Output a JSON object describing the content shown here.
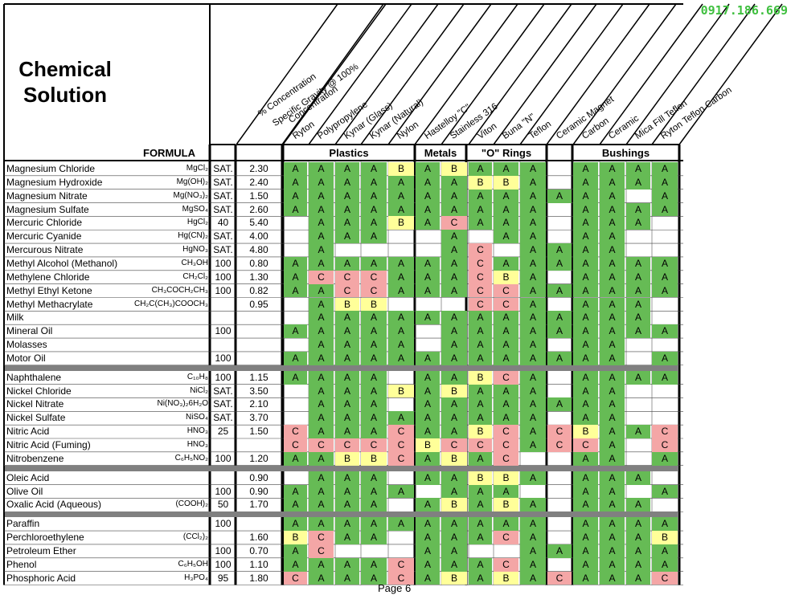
{
  "title_lines": [
    "Chemical",
    "Solution"
  ],
  "watermark": "0917.186.669",
  "page_label": "Page 6",
  "headers": {
    "formula": "FORMULA",
    "concentration": "% Concentration",
    "sg_line1": "Specific Gravity @ 100%",
    "sg_line2": "Concentration",
    "groups": [
      "Plastics",
      "Metals",
      "\"O\" Rings",
      "Bushings"
    ],
    "materials": [
      "Ryton",
      "Polypropylene",
      "Kynar (Glass)",
      "Kynar (Natural)",
      "Nylon",
      "Hastelloy \"C\"",
      "Stainless 316",
      "Viton",
      "Buna \"N\"",
      "Teflon",
      "Ceramic Magnet",
      "Carbon",
      "Ceramic",
      "Mica Fill Teflon",
      "Ryton Teflon Carbon"
    ]
  },
  "colors": {
    "A": "#66bb55",
    "B": "#ffff99",
    "C": "#f4a6a6",
    "separator": "#808080"
  },
  "rows": [
    {
      "name": "Magnesium Chloride",
      "formula": "MgCl₂",
      "conc": "SAT.",
      "sg": "2.30",
      "r": [
        "A",
        "A",
        "A",
        "A",
        "B",
        "A",
        "B",
        "A",
        "A",
        "A",
        "",
        "A",
        "A",
        "A",
        "A"
      ]
    },
    {
      "name": "Magnesium Hydroxide",
      "formula": "Mg(OH)₂",
      "conc": "SAT.",
      "sg": "2.40",
      "r": [
        "A",
        "A",
        "A",
        "A",
        "A",
        "A",
        "A",
        "B",
        "B",
        "A",
        "",
        "A",
        "A",
        "A",
        "A"
      ]
    },
    {
      "name": "Magnesium Nitrate",
      "formula": "Mg(NO₃)₂",
      "conc": "SAT.",
      "sg": "1.50",
      "r": [
        "A",
        "A",
        "A",
        "A",
        "A",
        "A",
        "A",
        "A",
        "A",
        "A",
        "A",
        "A",
        "A",
        "",
        "A"
      ]
    },
    {
      "name": "Magnesium Sulfate",
      "formula": "MgSO₄",
      "conc": "SAT.",
      "sg": "2.60",
      "r": [
        "A",
        "A",
        "A",
        "A",
        "A",
        "A",
        "A",
        "A",
        "A",
        "A",
        "",
        "A",
        "A",
        "A",
        "A"
      ]
    },
    {
      "name": "Mercuric Chloride",
      "formula": "HgCl₂",
      "conc": "40",
      "sg": "5.40",
      "r": [
        "",
        "A",
        "A",
        "A",
        "B",
        "A",
        "C",
        "A",
        "A",
        "A",
        "",
        "A",
        "A",
        "A",
        ""
      ]
    },
    {
      "name": "Mercuric Cyanide",
      "formula": "Hg(CN)₂",
      "conc": "SAT.",
      "sg": "4.00",
      "r": [
        "",
        "A",
        "A",
        "A",
        "",
        "",
        "A",
        "",
        "A",
        "A",
        "",
        "A",
        "A",
        "",
        ""
      ]
    },
    {
      "name": "Mercurous Nitrate",
      "formula": "HgNO₃",
      "conc": "SAT.",
      "sg": "4.80",
      "r": [
        "",
        "A",
        "",
        "",
        "",
        "",
        "A",
        "C",
        "",
        "A",
        "A",
        "A",
        "A",
        "",
        ""
      ]
    },
    {
      "name": "Methyl Alcohol (Methanol)",
      "formula": "CH₃OH",
      "conc": "100",
      "sg": "0.80",
      "r": [
        "A",
        "A",
        "A",
        "A",
        "A",
        "A",
        "A",
        "C",
        "A",
        "A",
        "A",
        "A",
        "A",
        "A",
        "A"
      ]
    },
    {
      "name": "Methylene Chloride",
      "formula": "CH₂Cl₂",
      "conc": "100",
      "sg": "1.30",
      "r": [
        "A",
        "C",
        "C",
        "C",
        "A",
        "A",
        "A",
        "C",
        "B",
        "A",
        "",
        "A",
        "A",
        "A",
        "A"
      ]
    },
    {
      "name": "Methyl Ethyl Ketone",
      "formula": "CH₃COCH₂CH₃",
      "conc": "100",
      "sg": "0.82",
      "r": [
        "A",
        "A",
        "C",
        "C",
        "A",
        "A",
        "A",
        "C",
        "C",
        "A",
        "A",
        "A",
        "A",
        "A",
        "A"
      ]
    },
    {
      "name": "Methyl Methacrylate",
      "formula": "CH₂C(CH₃)COOCH₃",
      "conc": "",
      "sg": "0.95",
      "r": [
        "",
        "A",
        "B",
        "B",
        "",
        "",
        "",
        "C",
        "C",
        "A",
        "",
        "A",
        "A",
        "A",
        ""
      ]
    },
    {
      "name": "Milk",
      "formula": "",
      "conc": "",
      "sg": "",
      "r": [
        "",
        "A",
        "A",
        "A",
        "A",
        "A",
        "A",
        "A",
        "A",
        "A",
        "A",
        "A",
        "A",
        "A",
        ""
      ]
    },
    {
      "name": "Mineral Oil",
      "formula": "",
      "conc": "100",
      "sg": "",
      "r": [
        "A",
        "A",
        "A",
        "A",
        "A",
        "",
        "A",
        "A",
        "A",
        "A",
        "A",
        "A",
        "A",
        "A",
        "A"
      ]
    },
    {
      "name": "Molasses",
      "formula": "",
      "conc": "",
      "sg": "",
      "r": [
        "",
        "A",
        "A",
        "A",
        "A",
        "",
        "A",
        "A",
        "A",
        "A",
        "",
        "A",
        "A",
        "",
        ""
      ]
    },
    {
      "name": "Motor Oil",
      "formula": "",
      "conc": "100",
      "sg": "",
      "r": [
        "A",
        "A",
        "A",
        "A",
        "A",
        "A",
        "A",
        "A",
        "A",
        "A",
        "A",
        "A",
        "A",
        "",
        "A"
      ]
    },
    {
      "sep": true
    },
    {
      "name": "Naphthalene",
      "formula": "C₁₀H₈",
      "conc": "100",
      "sg": "1.15",
      "r": [
        "A",
        "A",
        "A",
        "A",
        "",
        "A",
        "A",
        "B",
        "C",
        "A",
        "",
        "A",
        "A",
        "A",
        "A"
      ]
    },
    {
      "name": "Nickel Chloride",
      "formula": "NiCl₂",
      "conc": "SAT.",
      "sg": "3.50",
      "r": [
        "",
        "A",
        "A",
        "A",
        "B",
        "A",
        "B",
        "A",
        "A",
        "A",
        "",
        "A",
        "A",
        "",
        ""
      ]
    },
    {
      "name": "Nickel Nitrate",
      "formula": "Ni(NO₃)₂6H₂O",
      "conc": "SAT.",
      "sg": "2.10",
      "r": [
        "",
        "A",
        "A",
        "A",
        "",
        "A",
        "A",
        "A",
        "A",
        "A",
        "A",
        "A",
        "A",
        "",
        ""
      ]
    },
    {
      "name": "Nickel Sulfate",
      "formula": "NiSO₄",
      "conc": "SAT.",
      "sg": "3.70",
      "r": [
        "",
        "A",
        "A",
        "A",
        "A",
        "A",
        "A",
        "A",
        "A",
        "A",
        "",
        "A",
        "A",
        "",
        ""
      ]
    },
    {
      "name": "Nitric Acid",
      "formula": "HNO₃",
      "conc": "25",
      "sg": "1.50",
      "r": [
        "C",
        "A",
        "A",
        "A",
        "C",
        "A",
        "A",
        "B",
        "C",
        "A",
        "C",
        "B",
        "A",
        "A",
        "C"
      ]
    },
    {
      "name": "Nitric Acid (Fuming)",
      "formula": "HNO₃",
      "conc": "",
      "sg": "",
      "r": [
        "C",
        "C",
        "C",
        "C",
        "C",
        "B",
        "C",
        "C",
        "C",
        "A",
        "C",
        "C",
        "A",
        "",
        "C"
      ]
    },
    {
      "name": "Nitrobenzene",
      "formula": "C₆H₅NO₂",
      "conc": "100",
      "sg": "1.20",
      "r": [
        "A",
        "A",
        "B",
        "B",
        "C",
        "A",
        "B",
        "A",
        "C",
        "",
        "",
        "A",
        "A",
        "",
        "A"
      ]
    },
    {
      "sep": true
    },
    {
      "name": "Oleic Acid",
      "formula": "",
      "conc": "",
      "sg": "0.90",
      "r": [
        "",
        "A",
        "A",
        "A",
        "",
        "A",
        "A",
        "B",
        "B",
        "A",
        "",
        "A",
        "A",
        "A",
        ""
      ]
    },
    {
      "name": "Olive Oil",
      "formula": "",
      "conc": "100",
      "sg": "0.90",
      "r": [
        "A",
        "A",
        "A",
        "A",
        "A",
        "",
        "A",
        "A",
        "A",
        "",
        "",
        "A",
        "A",
        "",
        "A"
      ]
    },
    {
      "name": "Oxalic Acid (Aqueous)",
      "formula": "(COOH)₂",
      "conc": "50",
      "sg": "1.70",
      "r": [
        "A",
        "A",
        "A",
        "A",
        "",
        "A",
        "B",
        "A",
        "B",
        "A",
        "",
        "A",
        "A",
        "A",
        ""
      ]
    },
    {
      "sep": true
    },
    {
      "name": "Paraffin",
      "formula": "",
      "conc": "100",
      "sg": "",
      "r": [
        "A",
        "A",
        "A",
        "A",
        "A",
        "A",
        "A",
        "A",
        "A",
        "A",
        "",
        "A",
        "A",
        "A",
        "A"
      ]
    },
    {
      "name": "Perchloroethylene",
      "formula": "(CCl₂)₂",
      "conc": "",
      "sg": "1.60",
      "r": [
        "B",
        "C",
        "A",
        "A",
        "",
        "A",
        "A",
        "A",
        "C",
        "A",
        "",
        "A",
        "A",
        "A",
        "B"
      ]
    },
    {
      "name": "Petroleum Ether",
      "formula": "",
      "conc": "100",
      "sg": "0.70",
      "r": [
        "A",
        "C",
        "",
        "",
        "",
        "A",
        "A",
        "",
        "",
        "A",
        "A",
        "A",
        "A",
        "A",
        "A"
      ]
    },
    {
      "name": "Phenol",
      "formula": "C₆H₅OH",
      "conc": "100",
      "sg": "1.10",
      "r": [
        "A",
        "A",
        "A",
        "A",
        "C",
        "A",
        "A",
        "A",
        "C",
        "A",
        "",
        "A",
        "A",
        "A",
        "A"
      ]
    },
    {
      "name": "Phosphoric Acid",
      "formula": "H₃PO₄",
      "conc": "95",
      "sg": "1.80",
      "r": [
        "C",
        "A",
        "A",
        "A",
        "C",
        "A",
        "B",
        "A",
        "B",
        "A",
        "C",
        "A",
        "A",
        "A",
        "C"
      ]
    }
  ]
}
